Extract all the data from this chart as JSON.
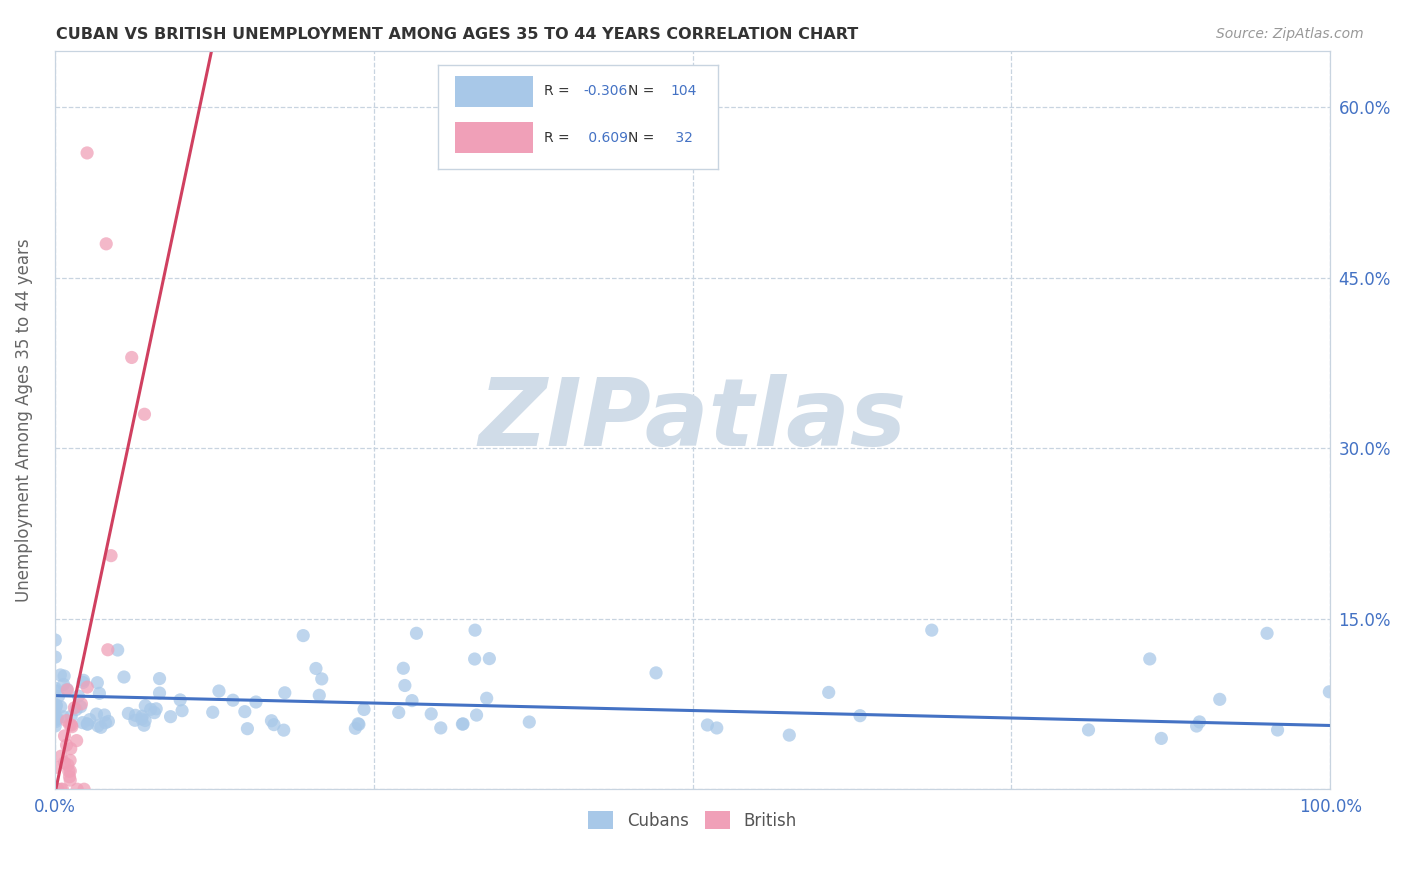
{
  "title": "CUBAN VS BRITISH UNEMPLOYMENT AMONG AGES 35 TO 44 YEARS CORRELATION CHART",
  "source": "Source: ZipAtlas.com",
  "ylabel": "Unemployment Among Ages 35 to 44 years",
  "xlim": [
    0,
    1.0
  ],
  "ylim": [
    0,
    0.65
  ],
  "xticks": [
    0.0,
    0.25,
    0.5,
    0.75,
    1.0
  ],
  "xticklabels": [
    "0.0%",
    "",
    "",
    "",
    "100.0%"
  ],
  "yticks": [
    0.0,
    0.15,
    0.3,
    0.45,
    0.6
  ],
  "yticklabels_right": [
    "",
    "15.0%",
    "30.0%",
    "45.0%",
    "60.0%"
  ],
  "cubans_R": -0.306,
  "cubans_N": 104,
  "british_R": 0.609,
  "british_N": 32,
  "cubans_color": "#a8c8e8",
  "british_color": "#f0a0b8",
  "cubans_line_color": "#4472c4",
  "british_line_color": "#d04060",
  "watermark": "ZIPatlas",
  "watermark_color": "#d0dce8",
  "legend_r_color": "#4472c4",
  "background_color": "#ffffff",
  "grid_color": "#c8d4e0",
  "title_color": "#333333",
  "source_color": "#999999",
  "ylabel_color": "#666666"
}
